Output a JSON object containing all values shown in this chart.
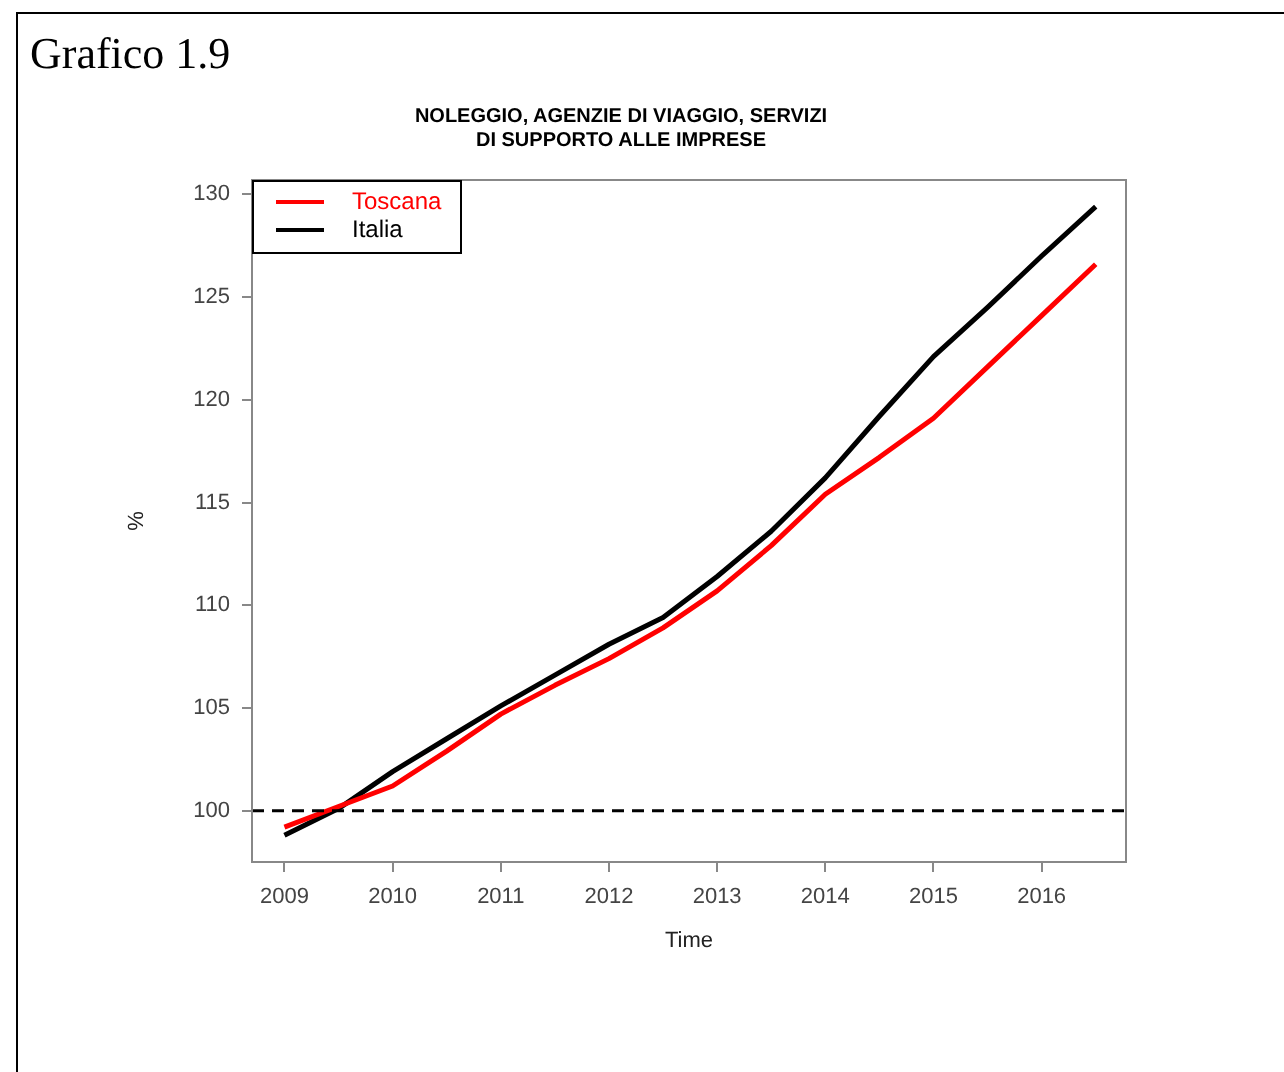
{
  "chart_data": {
    "type": "line",
    "title": "NOLEGGIO, AGENZIE DI VIAGGIO, SERVIZI\nDI SUPPORTO ALLE IMPRESE",
    "subtitle": "Grafico 1.9",
    "xlabel": "Time",
    "ylabel": "%",
    "x": [
      2009,
      2009.5,
      2010,
      2010.5,
      2011,
      2011.5,
      2012,
      2012.5,
      2013,
      2013.5,
      2014,
      2014.5,
      2015,
      2015.5,
      2016,
      2016.5
    ],
    "series": [
      {
        "name": "Toscana",
        "color": "#ff0000",
        "values": [
          99.2,
          100.2,
          101.2,
          102.9,
          104.7,
          106.1,
          107.4,
          108.9,
          110.7,
          112.9,
          115.4,
          117.2,
          119.1,
          121.6,
          124.1,
          126.6
        ]
      },
      {
        "name": "Italia",
        "color": "#000000",
        "values": [
          98.8,
          100.1,
          101.9,
          103.5,
          105.1,
          106.6,
          108.1,
          109.4,
          111.4,
          113.6,
          116.2,
          119.2,
          122.1,
          124.5,
          127.0,
          129.4
        ]
      }
    ],
    "xlim": [
      2008.7,
      2016.78
    ],
    "xticks": [
      2009,
      2010,
      2011,
      2012,
      2013,
      2014,
      2015,
      2016
    ],
    "ylim": [
      97.5,
      130.7
    ],
    "yticks": [
      100,
      105,
      110,
      115,
      120,
      125,
      130
    ],
    "ref_lines": [
      {
        "axis": "y",
        "value": 100,
        "color": "#000000",
        "line_style": "dashed"
      }
    ],
    "grid": false,
    "legend": "top left",
    "marker": "none",
    "line_style": "solid"
  }
}
